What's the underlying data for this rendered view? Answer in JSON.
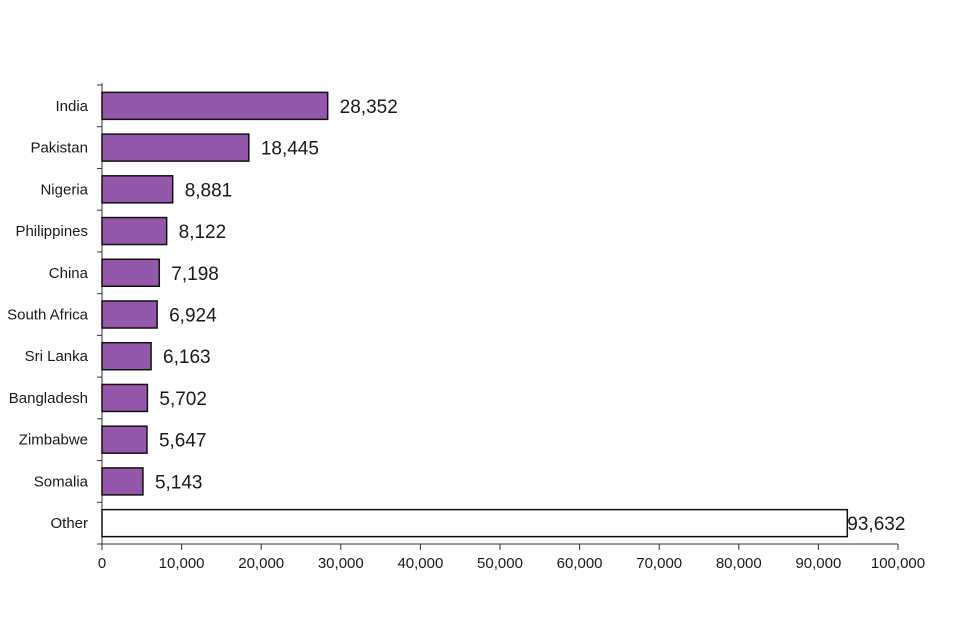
{
  "chart_data": {
    "type": "bar",
    "orientation": "horizontal",
    "title": "",
    "xlabel": "",
    "ylabel": "",
    "categories": [
      "India",
      "Pakistan",
      "Nigeria",
      "Philippines",
      "China",
      "South Africa",
      "Sri Lanka",
      "Bangladesh",
      "Zimbabwe",
      "Somalia",
      "Other"
    ],
    "values": [
      28352,
      18445,
      8881,
      8122,
      7198,
      6924,
      6163,
      5702,
      5647,
      5143,
      93632
    ],
    "value_labels": [
      "28,352",
      "18,445",
      "8,881",
      "8,122",
      "7,198",
      "6,924",
      "6,163",
      "5,702",
      "5,647",
      "5,143",
      "93,632"
    ],
    "xlim": [
      0,
      100000
    ],
    "x_ticks": [
      0,
      10000,
      20000,
      30000,
      40000,
      50000,
      60000,
      70000,
      80000,
      90000,
      100000
    ],
    "x_tick_labels": [
      "0",
      "10,000",
      "20,000",
      "30,000",
      "40,000",
      "50,000",
      "60,000",
      "70,000",
      "80,000",
      "90,000",
      "100,000"
    ],
    "grid": false,
    "legend": "none",
    "colors": {
      "bar_fill": "#9457aa",
      "other_fill": "#ffffff",
      "bar_stroke": "#111111",
      "axis": "#333333"
    }
  }
}
